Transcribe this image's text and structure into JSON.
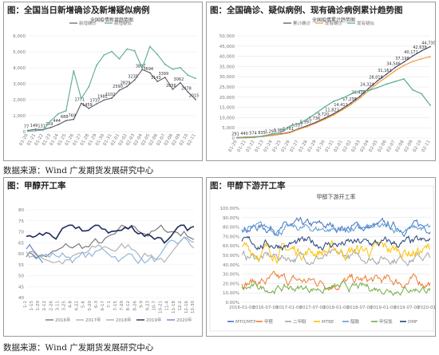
{
  "panels": {
    "p1": {
      "header": "图：全国当日新增确诊及新增疑似病例"
    },
    "p2": {
      "header": "图：全国确诊、疑似病例、现有确诊病例累计趋势图"
    },
    "p3": {
      "header": "图：甲醇开工率"
    },
    "p4": {
      "header": "图：甲醇下游开工率"
    }
  },
  "source_line_1": "数据来源：Wind  广发期货发展研究中心",
  "source_line_2": "数据来源：Wind  广发期货发展研究中心",
  "chart_data": [
    {
      "id": "daily-new",
      "type": "line",
      "title": "全国疫情新增趋势图",
      "x_labels": [
        "01-20",
        "01-21",
        "01-22",
        "01-23",
        "01-24",
        "01-25",
        "01-26",
        "01-27",
        "01-28",
        "01-29",
        "01-30",
        "01-31",
        "02-01",
        "02-02",
        "02-03",
        "02-04",
        "02-05",
        "02-06",
        "02-07",
        "02-08",
        "02-09",
        "02-10",
        "02-11"
      ],
      "ylim": [
        0,
        6000
      ],
      "yticks": [
        0,
        1000,
        2000,
        3000,
        4000,
        5000,
        6000
      ],
      "series": [
        {
          "name": "新增确诊",
          "color": "#5b5b6e",
          "values": [
            77,
            149,
            131,
            259,
            444,
            688,
            769,
            1771,
            1459,
            1737,
            1982,
            2102,
            2590,
            2829,
            3235,
            3887,
            3694,
            3143,
            3399,
            2656,
            3062,
            2478,
            2015
          ],
          "labels": [
            "77",
            "149",
            "131",
            "259",
            "444",
            "688",
            "769",
            "1771",
            "1459",
            "1737",
            "1982",
            "2102",
            "2590",
            "2829",
            "3235",
            "3887",
            "3694",
            "3143",
            "3399",
            "2656",
            "3062",
            "2478",
            "2015"
          ]
        },
        {
          "name": "新增疑似",
          "color": "#5aa894",
          "values": [
            27,
            60,
            100,
            680,
            1118,
            1309,
            3806,
            2077,
            2826,
            4148,
            4812,
            5019,
            4562,
            5173,
            5072,
            3971,
            5328,
            4833,
            4214,
            3916,
            4008,
            3536,
            3342
          ]
        }
      ]
    },
    {
      "id": "cumulative",
      "type": "line",
      "title": "全国疫情累计趋势图",
      "x_labels": [
        "01-20",
        "01-21",
        "01-22",
        "01-23",
        "01-24",
        "01-25",
        "01-26",
        "01-27",
        "01-28",
        "01-29",
        "01-30",
        "01-31",
        "02-01",
        "02-02",
        "02-03",
        "02-04",
        "02-05",
        "02-06",
        "02-07",
        "02-08",
        "02-09",
        "02-10",
        "02-11"
      ],
      "ylim": [
        0,
        50000
      ],
      "yticks": [
        0,
        5000,
        10000,
        15000,
        20000,
        25000,
        30000,
        35000,
        40000,
        45000,
        50000
      ],
      "series": [
        {
          "name": "累计确诊",
          "color": "#4a4a6a",
          "values": [
            291,
            440,
            574,
            835,
            1297,
            1985,
            2761,
            4537,
            5997,
            7736,
            9720,
            11821,
            14411,
            17238,
            20438,
            24324,
            28018,
            31161,
            34546,
            37198,
            40171,
            42638,
            44730
          ],
          "labels": [
            "291",
            "440",
            "574",
            "835",
            "1,297",
            "1,985",
            "2,761",
            "4,537",
            "5,997",
            "7,736",
            "9,720",
            "11,821",
            "14,411",
            "17,238",
            "20,438",
            "24,324",
            "28,018",
            "31,161",
            "34,546",
            "37,198",
            "40,171",
            "42,638",
            "44,730"
          ]
        },
        {
          "name": "现有确诊",
          "color": "#f39a3a",
          "values": [
            280,
            420,
            540,
            780,
            1200,
            1850,
            2550,
            4200,
            5600,
            7300,
            9200,
            11300,
            13800,
            16500,
            19600,
            23200,
            26800,
            29800,
            32900,
            35500,
            37500,
            38800,
            39800
          ]
        },
        {
          "name": "现有疑似",
          "color": "#5aa894",
          "values": [
            54,
            120,
            300,
            1072,
            1965,
            2684,
            5794,
            6973,
            9239,
            12167,
            15238,
            17988,
            19544,
            21558,
            23214,
            23260,
            24702,
            26359,
            27657,
            28942,
            23589,
            21675,
            16067
          ]
        }
      ]
    },
    {
      "id": "methanol-op",
      "type": "line",
      "title": "",
      "x_labels": [
        "1-1",
        "1-15",
        "1-29",
        "2-12",
        "2-26",
        "3-11",
        "3-25",
        "4-8",
        "4-22",
        "5-6",
        "5-20",
        "6-3",
        "6-17",
        "7-1",
        "7-15",
        "7-29",
        "8-12",
        "8-26",
        "9-9",
        "9-23",
        "10-7",
        "10-21",
        "11-4",
        "11-18",
        "12-2",
        "12-16",
        "12-30"
      ],
      "ylim": [
        40,
        80
      ],
      "yticks": [
        40,
        45,
        50,
        55,
        60,
        65,
        70,
        75,
        80
      ],
      "series": [
        {
          "name": "2016年",
          "color": "#7a7a7a"
        },
        {
          "name": "2017年",
          "color": "#b3b3b3"
        },
        {
          "name": "2018年",
          "color": "#8fb7df"
        },
        {
          "name": "2019年",
          "color": "#1f2d5c"
        },
        {
          "name": "2020年",
          "color": "#6e84c9"
        }
      ]
    },
    {
      "id": "downstream-op",
      "type": "line",
      "title": "甲醇下游开工率",
      "x_labels": [
        "2016-01-08",
        "2016-07-08",
        "2017-01-08",
        "2017-07-08",
        "2018-01-08",
        "2018-07-08",
        "2019-01-08",
        "2019-07-08",
        "2020-01-08"
      ],
      "yticks_labels": [
        "0.00%",
        "10.00%",
        "20.00%",
        "30.00%",
        "40.00%",
        "50.00%",
        "60.00%",
        "70.00%",
        "80.00%",
        "90.00%",
        "100.00%"
      ],
      "ylim": [
        0,
        100
      ],
      "series": [
        {
          "name": "MTO/MTP",
          "color": "#4472c4"
        },
        {
          "name": "甲醛",
          "color": "#ed7d31"
        },
        {
          "name": "二甲醚",
          "color": "#a5a5a5"
        },
        {
          "name": "MTBE",
          "color": "#ffc000"
        },
        {
          "name": "醋酸",
          "color": "#5b9bd5"
        },
        {
          "name": "甲烷氯",
          "color": "#70ad47"
        },
        {
          "name": "DMF",
          "color": "#264478"
        }
      ]
    }
  ]
}
